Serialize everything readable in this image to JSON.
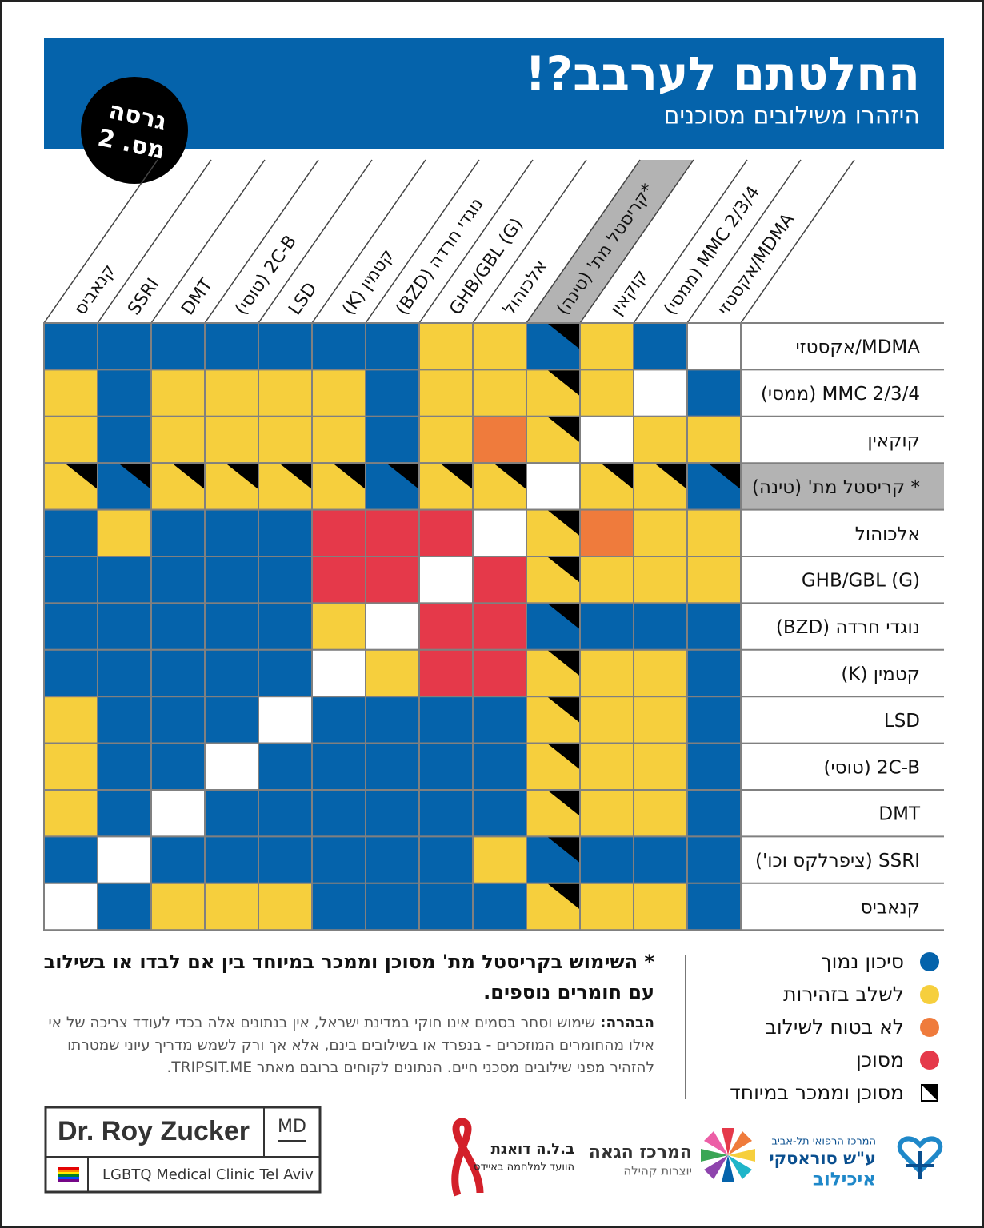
{
  "header": {
    "title": "החלטתם לערבב?!",
    "subtitle": "היזהרו משילובים מסוכנים",
    "badge": [
      "גרסה",
      "מס. 2"
    ]
  },
  "grid": {
    "columns": [
      "קנאביס",
      "SSRI",
      "DMT",
      "2C-B (טוסי)",
      "LSD",
      "קטמין (K)",
      "נוגדי חרדה (BZD)",
      "GHB/GBL (G)",
      "אלכוהול",
      "*קריסטל מת' (טינה)",
      "קוקאין",
      "MMC 2/3/4 (ממסי)",
      "MDMA/אקסטזי"
    ],
    "rows": [
      "MDMA/אקסטזי",
      "MMC 2/3/4 (ממסי)",
      "קוקאין",
      "* קריסטל מת' (טינה)",
      "אלכוהול",
      "GHB/GBL (G)",
      "נוגדי חרדה (BZD)",
      "קטמין (K)",
      "LSD",
      "2C-B (טוסי)",
      "DMT",
      "SSRI (ציפרלקס וכו')",
      "קנאביס"
    ],
    "cells": [
      [
        [
          0
        ],
        [
          0
        ],
        [
          0
        ],
        [
          0
        ],
        [
          0
        ],
        [
          0
        ],
        [
          0
        ],
        [
          1
        ],
        [
          1
        ],
        [
          0,
          4
        ],
        [
          1
        ],
        [
          0
        ],
        []
      ],
      [
        [
          1
        ],
        [
          0
        ],
        [
          1
        ],
        [
          1
        ],
        [
          1
        ],
        [
          1
        ],
        [
          0
        ],
        [
          1
        ],
        [
          1
        ],
        [
          1,
          4
        ],
        [
          1
        ],
        [],
        [
          0
        ]
      ],
      [
        [
          1
        ],
        [
          0
        ],
        [
          1
        ],
        [
          1
        ],
        [
          1
        ],
        [
          1
        ],
        [
          0
        ],
        [
          1
        ],
        [
          2
        ],
        [
          1,
          4
        ],
        [],
        [
          1
        ],
        [
          1
        ]
      ],
      [
        [
          1,
          4
        ],
        [
          0,
          4
        ],
        [
          1,
          4
        ],
        [
          1,
          4
        ],
        [
          1,
          4
        ],
        [
          1,
          4
        ],
        [
          0,
          4
        ],
        [
          1,
          4
        ],
        [
          1,
          4
        ],
        [],
        [
          1,
          4
        ],
        [
          1,
          4
        ],
        [
          0,
          4
        ]
      ],
      [
        [
          0
        ],
        [
          1
        ],
        [
          0
        ],
        [
          0
        ],
        [
          0
        ],
        [
          3
        ],
        [
          3
        ],
        [
          3
        ],
        [],
        [
          1,
          4
        ],
        [
          2
        ],
        [
          1
        ],
        [
          1
        ]
      ],
      [
        [
          0
        ],
        [
          0
        ],
        [
          0
        ],
        [
          0
        ],
        [
          0
        ],
        [
          3
        ],
        [
          3
        ],
        [],
        [
          3
        ],
        [
          1,
          4
        ],
        [
          1
        ],
        [
          1
        ],
        [
          1
        ]
      ],
      [
        [
          0
        ],
        [
          0
        ],
        [
          0
        ],
        [
          0
        ],
        [
          0
        ],
        [
          1
        ],
        [],
        [
          3
        ],
        [
          3
        ],
        [
          0,
          4
        ],
        [
          0
        ],
        [
          0
        ],
        [
          0
        ]
      ],
      [
        [
          0
        ],
        [
          0
        ],
        [
          0
        ],
        [
          0
        ],
        [
          0
        ],
        [],
        [
          1
        ],
        [
          3
        ],
        [
          3
        ],
        [
          1,
          4
        ],
        [
          1
        ],
        [
          1
        ],
        [
          0
        ]
      ],
      [
        [
          1
        ],
        [
          0
        ],
        [
          0
        ],
        [
          0
        ],
        [],
        [
          0
        ],
        [
          0
        ],
        [
          0
        ],
        [
          0
        ],
        [
          1,
          4
        ],
        [
          1
        ],
        [
          1
        ],
        [
          0
        ]
      ],
      [
        [
          1
        ],
        [
          0
        ],
        [
          0
        ],
        [],
        [
          0
        ],
        [
          0
        ],
        [
          0
        ],
        [
          0
        ],
        [
          0
        ],
        [
          1,
          4
        ],
        [
          1
        ],
        [
          1
        ],
        [
          0
        ]
      ],
      [
        [
          1
        ],
        [
          0
        ],
        [],
        [
          0
        ],
        [
          0
        ],
        [
          0
        ],
        [
          0
        ],
        [
          0
        ],
        [
          0
        ],
        [
          1,
          4
        ],
        [
          1
        ],
        [
          1
        ],
        [
          0
        ]
      ],
      [
        [
          0
        ],
        [],
        [
          0
        ],
        [
          0
        ],
        [
          0
        ],
        [
          0
        ],
        [
          0
        ],
        [
          0
        ],
        [
          1
        ],
        [
          0,
          4
        ],
        [
          0
        ],
        [
          0
        ],
        [
          0
        ]
      ],
      [
        [],
        [
          0
        ],
        [
          1
        ],
        [
          1
        ],
        [
          1
        ],
        [
          0
        ],
        [
          0
        ],
        [
          0
        ],
        [
          0
        ],
        [
          1,
          4
        ],
        [
          1
        ],
        [
          1
        ],
        [
          0
        ]
      ]
    ]
  },
  "legend": [
    {
      "label": "סיכון נמוך",
      "color": "#0563ab"
    },
    {
      "label": "לשלב בזהירות",
      "color": "#f6cf3d"
    },
    {
      "label": "לא בטוח לשילוב",
      "color": "#ef7b3c"
    },
    {
      "label": "מסוכן",
      "color": "#e5394a"
    },
    {
      "label": "מסוכן וממכר במיוחד",
      "color": "#000000"
    }
  ],
  "note": "* השימוש בקריסטל מת' מסוכן וממכר במיוחד בין אם לבדו או בשילוב עם חומרים נוספים.",
  "disclaimer": {
    "label": "הבהרה:",
    "text": "שימוש וסחר בסמים אינו חוקי במדינת ישראל, אין בנתונים אלה בכדי לעודד צריכה של אי אילו מהחומרים המוזכרים - בנפרד או בשילובים בינם, אלא אך ורק לשמש מדריך עיוני שמטרתו להזהיר מפני שילובים מסכני חיים. הנתונים לקוחים ברובם מאתר TRIPSIT.ME."
  },
  "logo": {
    "name": "Dr. Roy Zucker",
    "degree": "MD",
    "clinic": "LGBTQ Medical Clinic Tel Aviv"
  },
  "partners": [
    {
      "lines": [
        "ב.ל.ה דואגת",
        "הוועד למלחמה באיידס"
      ]
    },
    {
      "lines": [
        "המרכז הגאה",
        "יוצרות קהילה"
      ]
    },
    {
      "lines": [
        "המרכז הרפואי תל-אביב",
        "ע\"ש סוראסקי",
        "איכילוב"
      ]
    }
  ]
}
